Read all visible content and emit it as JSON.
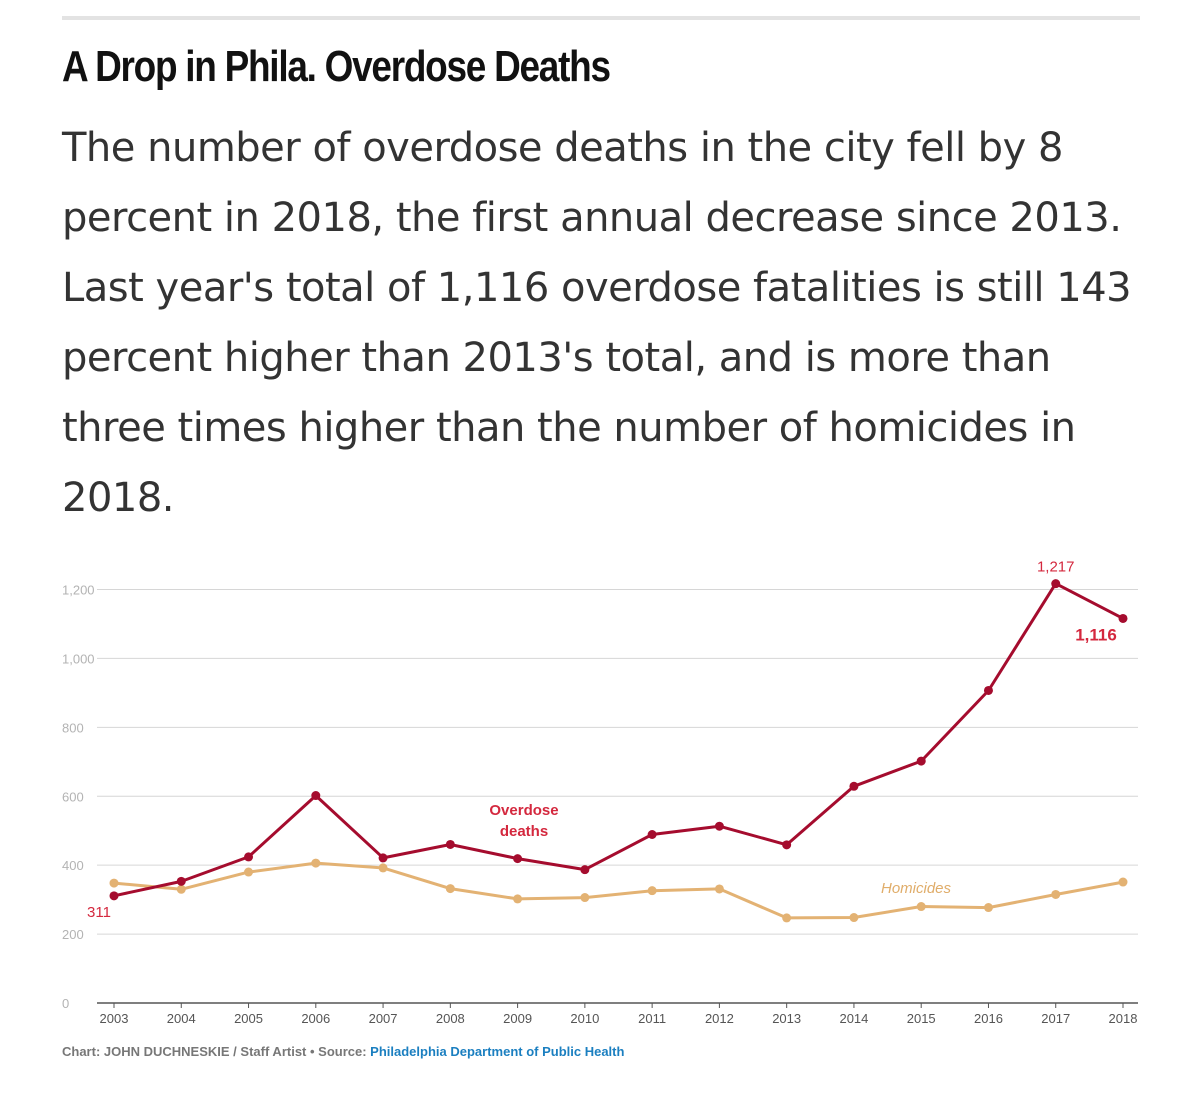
{
  "headline": "A Drop in Phila. Overdose Deaths",
  "dek": "The number of overdose deaths in the city fell by 8 percent in 2018, the first annual decrease since 2013. Last year's total of 1,116 overdose fatalities is still 143 percent higher than 2013's total, and is more than three times higher than the number of homicides in 2018.",
  "credit": {
    "prefix": "Chart: JOHN DUCHNESKIE / Staff Artist • Source: ",
    "source": "Philadelphia Department of Public Health"
  },
  "chart_data": {
    "type": "line",
    "title": "",
    "xlabel": "",
    "ylabel": "",
    "ylim": [
      0,
      1250
    ],
    "yticks": [
      0,
      200,
      400,
      600,
      800,
      1000,
      1200
    ],
    "ytick_labels": [
      "0",
      "200",
      "400",
      "600",
      "800",
      "1,000",
      "1,200"
    ],
    "grid": true,
    "x": [
      2003,
      2004,
      2005,
      2006,
      2007,
      2008,
      2009,
      2010,
      2011,
      2012,
      2013,
      2014,
      2015,
      2016,
      2017,
      2018
    ],
    "series": [
      {
        "name": "Overdose deaths",
        "label_lines": [
          "Overdose",
          "deaths"
        ],
        "color": "#a50c2e",
        "values": [
          311,
          353,
          424,
          602,
          421,
          460,
          419,
          387,
          489,
          513,
          459,
          629,
          702,
          907,
          1217,
          1116
        ]
      },
      {
        "name": "Homicides",
        "label_lines": [
          "Homicides"
        ],
        "color": "#e3b273",
        "values": [
          348,
          330,
          380,
          406,
          392,
          332,
          302,
          306,
          326,
          331,
          247,
          248,
          280,
          277,
          315,
          351
        ]
      }
    ],
    "annotations": [
      {
        "text": "311",
        "series": 0,
        "index": 0,
        "color": "#d4283e",
        "bold": false
      },
      {
        "text": "1,217",
        "series": 0,
        "index": 14,
        "color": "#d4283e",
        "bold": false
      },
      {
        "text": "1,116",
        "series": 0,
        "index": 15,
        "color": "#d4283e",
        "bold": true
      }
    ]
  }
}
